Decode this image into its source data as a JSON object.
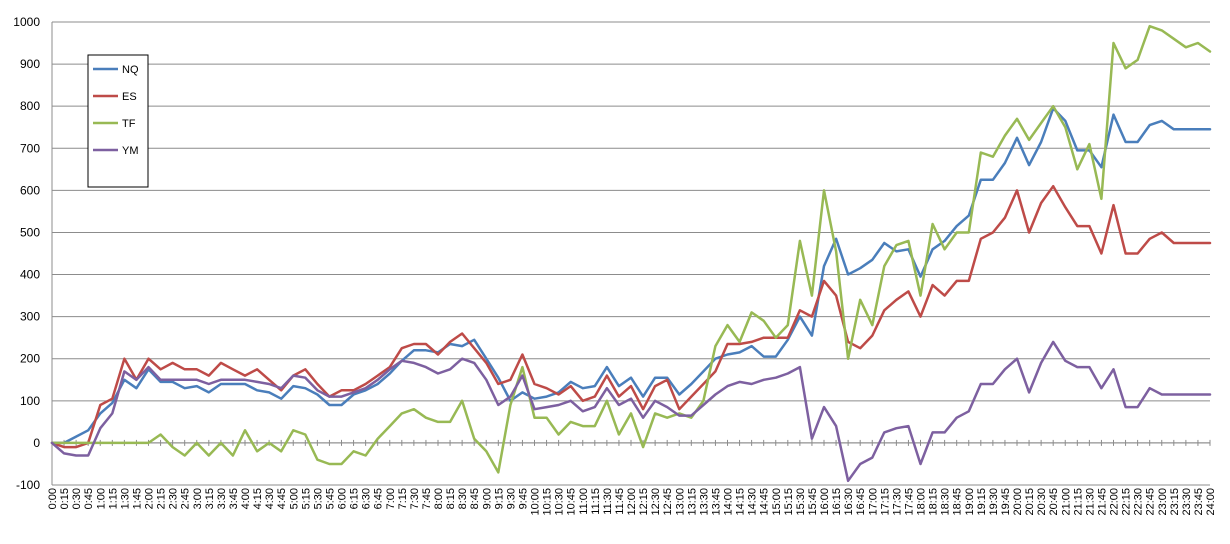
{
  "chart_data": {
    "type": "line",
    "title": "",
    "xlabel": "",
    "ylabel": "",
    "ylim": [
      -100,
      1000
    ],
    "yticks": [
      -100,
      0,
      100,
      200,
      300,
      400,
      500,
      600,
      700,
      800,
      900,
      1000
    ],
    "grid": "horizontal",
    "legend_position": "top-left",
    "x": [
      "0:00",
      "0:15",
      "0:30",
      "0:45",
      "1:00",
      "1:15",
      "1:30",
      "1:45",
      "2:00",
      "2:15",
      "2:30",
      "2:45",
      "3:00",
      "3:15",
      "3:30",
      "3:45",
      "4:00",
      "4:15",
      "4:30",
      "4:45",
      "5:00",
      "5:15",
      "5:30",
      "5:45",
      "6:00",
      "6:15",
      "6:30",
      "6:45",
      "7:00",
      "7:15",
      "7:30",
      "7:45",
      "8:00",
      "8:15",
      "8:30",
      "8:45",
      "9:00",
      "9:15",
      "9:30",
      "9:45",
      "10:00",
      "10:15",
      "10:30",
      "10:45",
      "11:00",
      "11:15",
      "11:30",
      "11:45",
      "12:00",
      "12:15",
      "12:30",
      "12:45",
      "13:00",
      "13:15",
      "13:30",
      "13:45",
      "14:00",
      "14:15",
      "14:30",
      "14:45",
      "15:00",
      "15:15",
      "15:30",
      "15:45",
      "16:00",
      "16:15",
      "16:30",
      "16:45",
      "17:00",
      "17:15",
      "17:30",
      "17:45",
      "18:00",
      "18:15",
      "18:30",
      "18:45",
      "19:00",
      "19:15",
      "19:30",
      "19:45",
      "20:00",
      "20:15",
      "20:30",
      "20:45",
      "21:00",
      "21:15",
      "21:30",
      "21:45",
      "22:00",
      "22:15",
      "22:30",
      "22:45",
      "23:00",
      "23:15",
      "23:30",
      "23:45",
      "24:00"
    ],
    "series": [
      {
        "name": "NQ",
        "color": "#4a7ebb",
        "values": [
          0,
          0,
          15,
          30,
          70,
          95,
          150,
          130,
          175,
          145,
          145,
          130,
          135,
          120,
          140,
          140,
          140,
          125,
          120,
          105,
          135,
          130,
          115,
          90,
          90,
          115,
          125,
          140,
          165,
          195,
          220,
          220,
          215,
          235,
          230,
          245,
          200,
          155,
          100,
          120,
          105,
          110,
          120,
          145,
          130,
          135,
          180,
          135,
          155,
          110,
          155,
          155,
          115,
          140,
          170,
          200,
          210,
          215,
          230,
          205,
          205,
          245,
          300,
          255,
          420,
          485,
          400,
          415,
          435,
          475,
          455,
          460,
          395,
          460,
          480,
          515,
          540,
          625,
          625,
          665,
          725,
          660,
          715,
          795,
          765,
          695,
          695,
          655,
          780,
          715,
          715,
          755,
          765,
          745,
          745,
          745,
          745
        ]
      },
      {
        "name": "ES",
        "color": "#be4b48",
        "values": [
          0,
          -10,
          -10,
          0,
          90,
          105,
          200,
          150,
          200,
          175,
          190,
          175,
          175,
          160,
          190,
          175,
          160,
          175,
          150,
          125,
          160,
          175,
          140,
          110,
          125,
          125,
          140,
          160,
          180,
          225,
          235,
          235,
          210,
          240,
          260,
          225,
          190,
          140,
          150,
          210,
          140,
          130,
          115,
          135,
          100,
          110,
          160,
          110,
          135,
          80,
          135,
          150,
          80,
          110,
          140,
          170,
          235,
          235,
          240,
          250,
          250,
          250,
          315,
          300,
          385,
          350,
          240,
          225,
          255,
          315,
          340,
          360,
          300,
          375,
          350,
          385,
          385,
          485,
          500,
          535,
          600,
          500,
          570,
          610,
          560,
          515,
          515,
          450,
          565,
          450,
          450,
          485,
          500,
          475,
          475,
          475,
          475
        ]
      },
      {
        "name": "TF",
        "color": "#98b954",
        "values": [
          0,
          0,
          0,
          0,
          0,
          0,
          0,
          0,
          0,
          20,
          -10,
          -30,
          0,
          -30,
          0,
          -30,
          30,
          -20,
          0,
          -20,
          30,
          20,
          -40,
          -50,
          -50,
          -20,
          -30,
          10,
          40,
          70,
          80,
          60,
          50,
          50,
          100,
          10,
          -20,
          -70,
          90,
          180,
          60,
          60,
          20,
          50,
          40,
          40,
          100,
          20,
          70,
          -10,
          70,
          60,
          70,
          60,
          100,
          230,
          280,
          240,
          310,
          290,
          250,
          280,
          480,
          350,
          600,
          455,
          200,
          340,
          280,
          420,
          470,
          480,
          350,
          520,
          460,
          500,
          500,
          690,
          680,
          730,
          770,
          720,
          760,
          800,
          750,
          650,
          710,
          580,
          950,
          890,
          910,
          990,
          980,
          960,
          940,
          950,
          930
        ]
      },
      {
        "name": "YM",
        "color": "#7d60a0",
        "values": [
          0,
          -25,
          -30,
          -30,
          35,
          70,
          170,
          150,
          180,
          150,
          150,
          150,
          150,
          140,
          150,
          150,
          150,
          145,
          140,
          130,
          160,
          155,
          125,
          110,
          110,
          120,
          130,
          150,
          175,
          195,
          190,
          180,
          165,
          175,
          200,
          190,
          150,
          90,
          110,
          160,
          80,
          85,
          90,
          100,
          75,
          85,
          130,
          90,
          105,
          60,
          100,
          85,
          65,
          65,
          90,
          115,
          135,
          145,
          140,
          150,
          155,
          165,
          180,
          10,
          85,
          40,
          -90,
          -50,
          -35,
          25,
          35,
          40,
          -50,
          25,
          25,
          60,
          75,
          140,
          140,
          175,
          200,
          120,
          190,
          240,
          195,
          180,
          180,
          130,
          175,
          85,
          85,
          130,
          115,
          115,
          115,
          115,
          115
        ]
      }
    ]
  }
}
